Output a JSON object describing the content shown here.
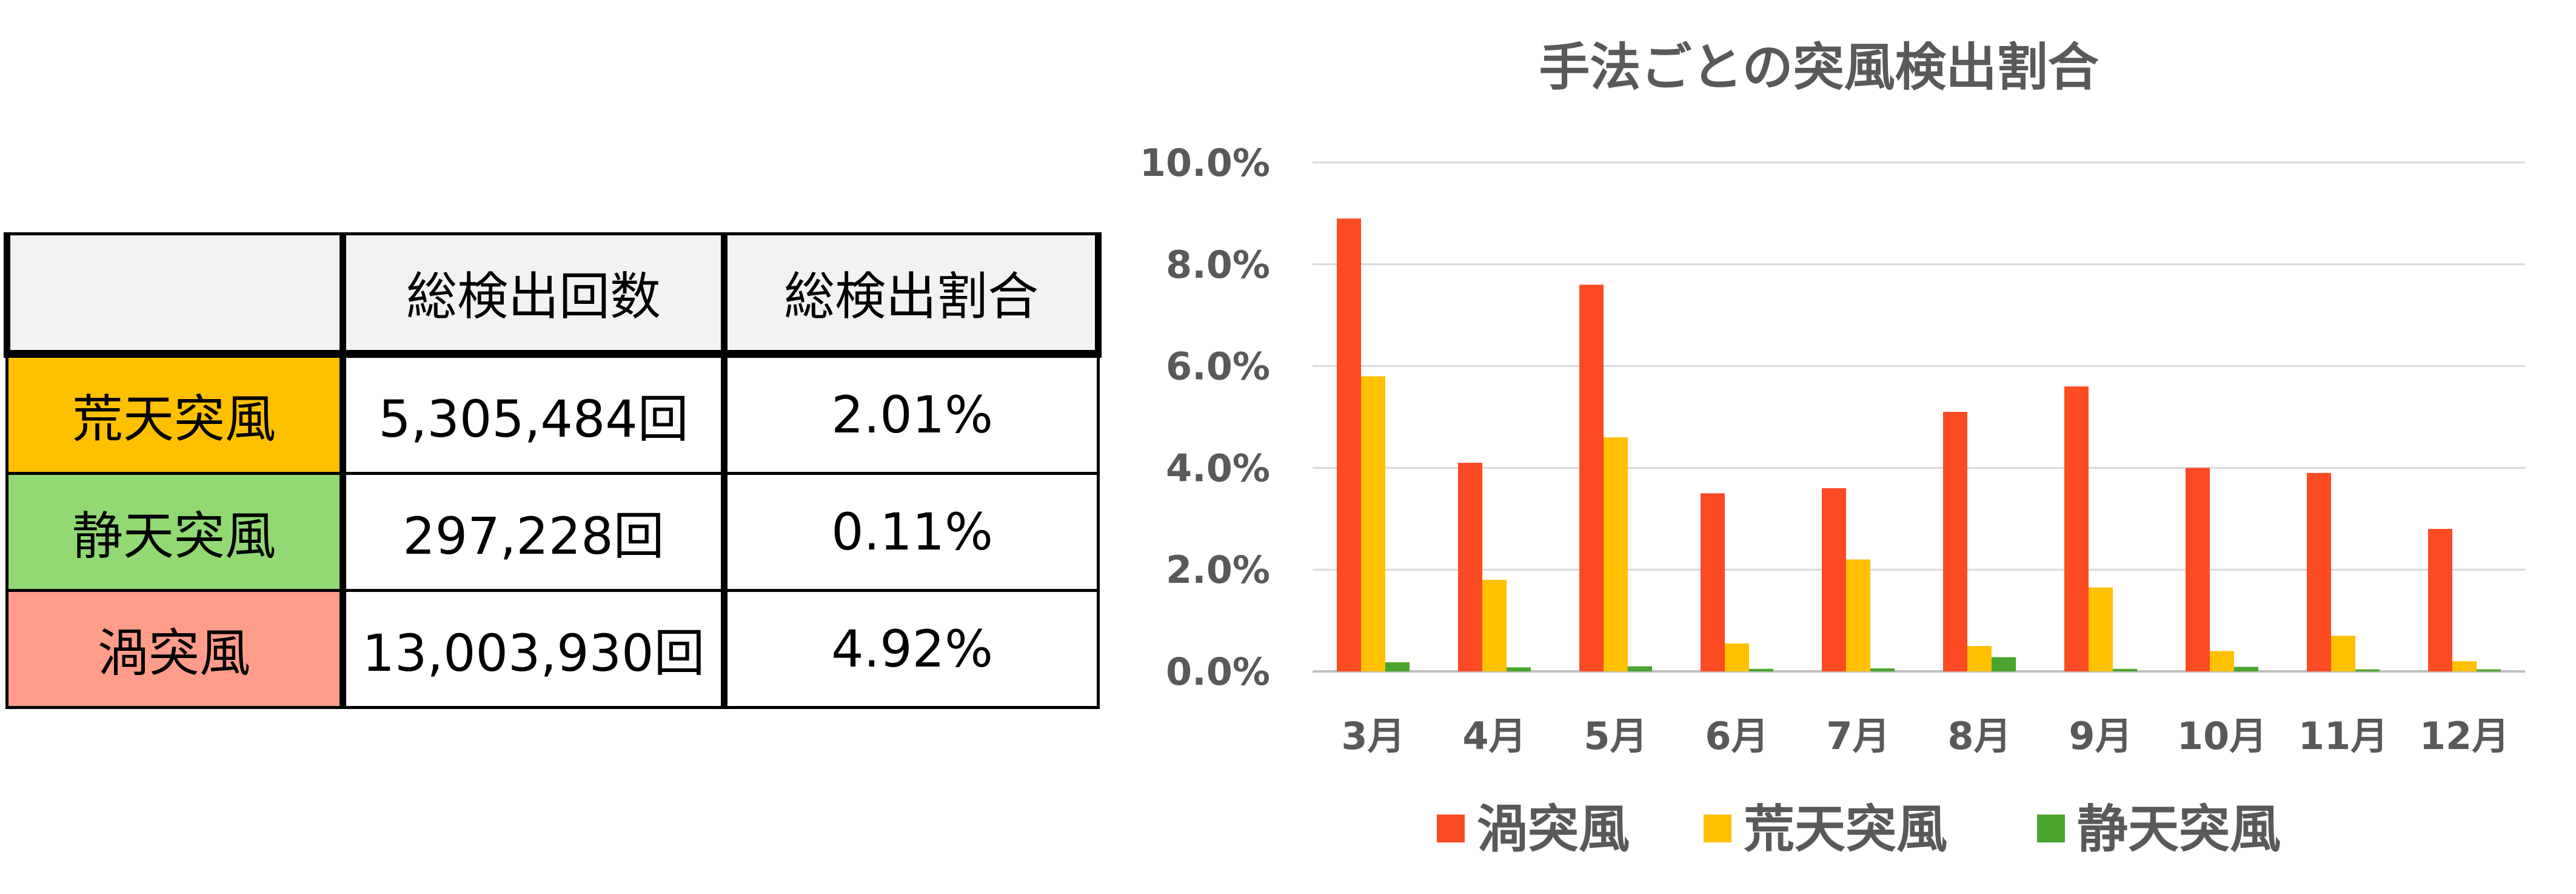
{
  "table": {
    "headers": [
      "",
      "総検出回数",
      "総検出割合"
    ],
    "rows": [
      {
        "name": "荒天突風",
        "count": "5,305,484回",
        "ratio": "2.01%",
        "color": "#ffc000"
      },
      {
        "name": "静天突風",
        "count": "297,228回",
        "ratio": "0.11%",
        "color": "#92d973"
      },
      {
        "name": "渦突風",
        "count": "13,003,930回",
        "ratio": "4.92%",
        "color": "#ff9c8a"
      }
    ]
  },
  "chart_data": {
    "type": "bar",
    "title": "手法ごとの突風検出割合",
    "categories": [
      "3月",
      "4月",
      "5月",
      "6月",
      "7月",
      "8月",
      "9月",
      "10月",
      "11月",
      "12月"
    ],
    "series": [
      {
        "name": "渦突風",
        "color": "#fc4a23",
        "values": [
          8.9,
          4.1,
          7.6,
          3.5,
          3.6,
          5.1,
          5.6,
          4.0,
          3.9,
          2.8
        ]
      },
      {
        "name": "荒天突風",
        "color": "#ffc000",
        "values": [
          5.8,
          1.8,
          4.6,
          0.55,
          2.2,
          0.5,
          1.65,
          0.4,
          0.7,
          0.2
        ]
      },
      {
        "name": "静天突風",
        "color": "#4aa52e",
        "values": [
          0.18,
          0.08,
          0.1,
          0.05,
          0.06,
          0.28,
          0.05,
          0.09,
          0.04,
          0.04
        ]
      }
    ],
    "yticks": [
      "0.0%",
      "2.0%",
      "4.0%",
      "6.0%",
      "8.0%",
      "10.0%"
    ],
    "ylim": [
      0,
      10
    ],
    "ylabel": "",
    "xlabel": "",
    "grid": true,
    "legend_position": "bottom"
  }
}
